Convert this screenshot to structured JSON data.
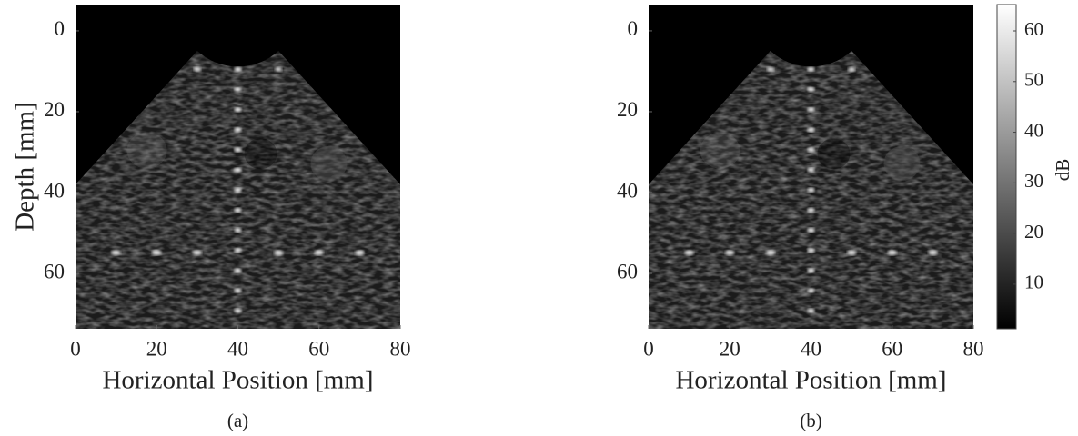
{
  "chart_data": [
    {
      "type": "image",
      "caption": "(a)",
      "xlabel": "Horizontal Position [mm]",
      "ylabel": "Depth [mm]",
      "xlim": [
        0,
        80
      ],
      "ylim": [
        -6.5,
        73.7
      ],
      "xticks": [
        0,
        20,
        40,
        60,
        80
      ],
      "yticks": [
        0,
        20,
        40,
        60
      ]
    },
    {
      "type": "image",
      "caption": "(b)",
      "xlabel": "Horizontal Position [mm]",
      "xlim": [
        0,
        80
      ],
      "ylim": [
        -6.5,
        73.7
      ],
      "xticks": [
        0,
        20,
        40,
        60,
        80
      ],
      "yticks": [
        0,
        20,
        40,
        60
      ],
      "colorbar": {
        "label": "dB",
        "lim": [
          1.2,
          65.2
        ],
        "ticks": [
          10,
          20,
          30,
          40,
          50,
          60
        ]
      }
    }
  ]
}
